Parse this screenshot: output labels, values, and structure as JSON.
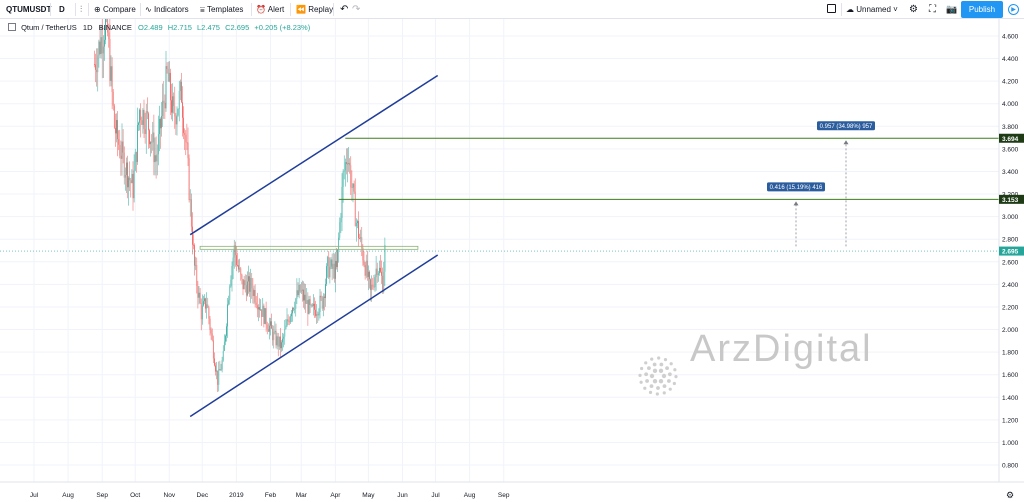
{
  "toolbar": {
    "symbol": "QTUMUSDT",
    "interval": "D",
    "compare": "Compare",
    "indicators": "Indicators",
    "templates": "Templates",
    "alert": "Alert",
    "replay": "Replay",
    "layout_name": "Unnamed",
    "publish": "Publish"
  },
  "legend": {
    "pair": "Qtum / TetherUS",
    "interval": "1D",
    "exchange": "BINANCE",
    "open": "O2.489",
    "high": "H2.715",
    "low": "L2.475",
    "close": "C2.695",
    "change": "+0.205 (+8.23%)"
  },
  "watermark": "ArzDigital",
  "colors": {
    "up": "#26a69a",
    "down": "#ef5350",
    "channel": "#1f3d99",
    "levels": "#3e7d1c",
    "accent": "#2196f3"
  },
  "chart_data": {
    "type": "candlestick",
    "ylim": [
      0.65,
      4.75
    ],
    "yticks": [
      "4.600",
      "4.400",
      "4.200",
      "4.000",
      "3.800",
      "3.600",
      "3.400",
      "3.200",
      "3.000",
      "2.800",
      "2.600",
      "2.400",
      "2.200",
      "2.000",
      "1.800",
      "1.600",
      "1.400",
      "1.200",
      "1.000",
      "0.800"
    ],
    "ytick_values": [
      4.6,
      4.4,
      4.2,
      4.0,
      3.8,
      3.6,
      3.4,
      3.2,
      3.0,
      2.8,
      2.6,
      2.4,
      2.2,
      2.0,
      1.8,
      1.6,
      1.4,
      1.2,
      1.0,
      0.8
    ],
    "xticks": [
      "Jul",
      "Aug",
      "Sep",
      "Oct",
      "Nov",
      "Dec",
      "2019",
      "Feb",
      "Mar",
      "Apr",
      "May",
      "Jun",
      "Jul",
      "Aug",
      "Sep"
    ],
    "xtick_dates": [
      "2018-07-01",
      "2018-08-01",
      "2018-09-01",
      "2018-10-01",
      "2018-11-01",
      "2018-12-01",
      "2019-01-01",
      "2019-02-01",
      "2019-03-01",
      "2019-04-01",
      "2019-05-01",
      "2019-06-01",
      "2019-07-01",
      "2019-08-01",
      "2019-09-01"
    ],
    "last_price": "2.695",
    "last_price_value": 2.695,
    "levels": [
      {
        "label": "3.694",
        "value": 3.694,
        "start": "2019-04-10",
        "measure": "0.957 (34.98%) 957"
      },
      {
        "label": "3.153",
        "value": 3.153,
        "start": "2019-04-04",
        "measure": "0.416 (15.19%) 416"
      }
    ],
    "base_level": {
      "value": 2.737,
      "start": "2018-11-29",
      "end": "2019-06-15"
    },
    "channel": {
      "upper": [
        [
          "2018-11-20",
          2.84
        ],
        [
          "2019-07-03",
          4.25
        ]
      ],
      "lower": [
        [
          "2018-11-20",
          1.23
        ],
        [
          "2019-07-03",
          2.66
        ]
      ]
    },
    "series_start": "2018-08-25",
    "series_end": "2019-05-16",
    "anchors": [
      [
        "2018-08-25",
        4.35
      ],
      [
        "2018-09-05",
        4.75
      ],
      [
        "2018-09-12",
        3.8
      ],
      [
        "2018-09-20",
        3.5
      ],
      [
        "2018-09-29",
        3.25
      ],
      [
        "2018-10-05",
        3.95
      ],
      [
        "2018-10-12",
        3.85
      ],
      [
        "2018-10-20",
        3.5
      ],
      [
        "2018-10-30",
        4.25
      ],
      [
        "2018-11-05",
        3.88
      ],
      [
        "2018-11-12",
        4.1
      ],
      [
        "2018-11-17",
        3.55
      ],
      [
        "2018-11-20",
        3.1
      ],
      [
        "2018-11-24",
        2.55
      ],
      [
        "2018-11-30",
        2.15
      ],
      [
        "2018-12-05",
        2.25
      ],
      [
        "2018-12-10",
        1.88
      ],
      [
        "2018-12-15",
        1.55
      ],
      [
        "2018-12-20",
        1.75
      ],
      [
        "2018-12-26",
        2.45
      ],
      [
        "2018-12-30",
        2.71
      ],
      [
        "2019-01-06",
        2.4
      ],
      [
        "2019-01-15",
        2.38
      ],
      [
        "2019-01-25",
        2.15
      ],
      [
        "2019-02-05",
        1.92
      ],
      [
        "2019-02-11",
        1.85
      ],
      [
        "2019-02-20",
        2.2
      ],
      [
        "2019-02-28",
        2.34
      ],
      [
        "2019-03-10",
        2.15
      ],
      [
        "2019-03-20",
        2.25
      ],
      [
        "2019-03-25",
        2.55
      ],
      [
        "2019-04-02",
        2.52
      ],
      [
        "2019-04-08",
        3.35
      ],
      [
        "2019-04-12",
        3.58
      ],
      [
        "2019-04-20",
        2.95
      ],
      [
        "2019-04-27",
        2.62
      ],
      [
        "2019-05-03",
        2.32
      ],
      [
        "2019-05-09",
        2.58
      ],
      [
        "2019-05-14",
        2.42
      ],
      [
        "2019-05-16",
        2.7
      ]
    ]
  }
}
